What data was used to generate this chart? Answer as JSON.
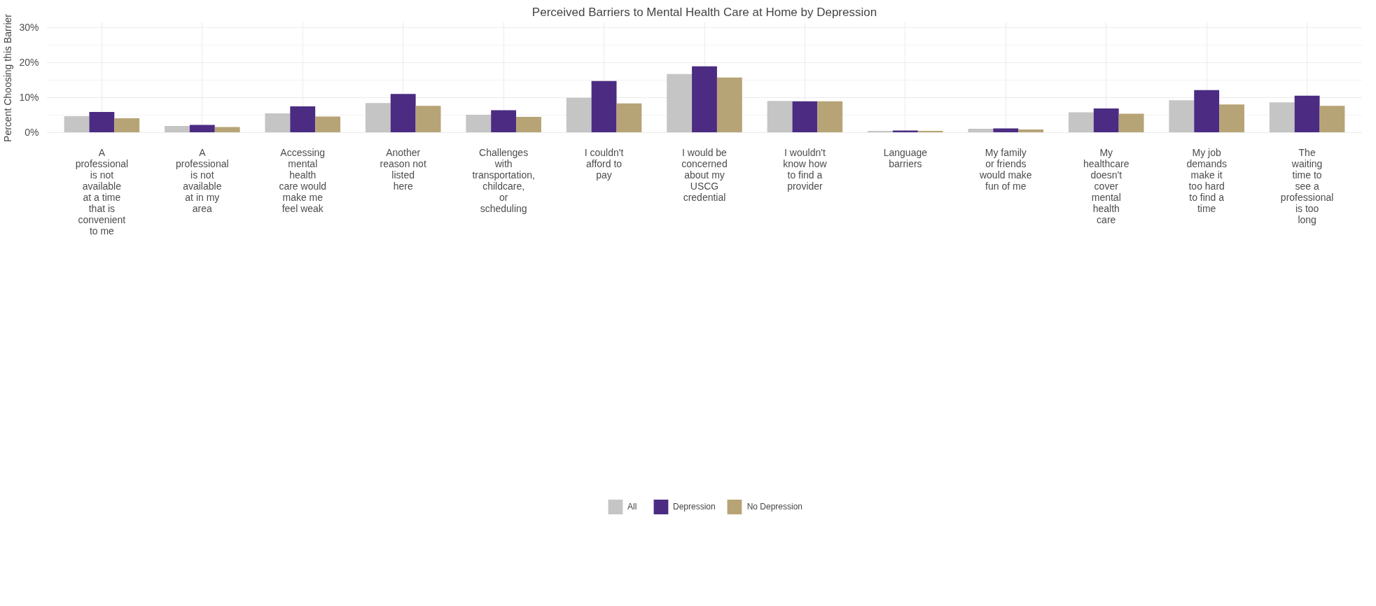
{
  "chart_data": {
    "type": "bar",
    "title": "Perceived Barriers to Mental Health Care at Home by Depression",
    "ylabel": "Percent Choosing this Barrier",
    "categories": [
      "A professional is not available at a time that is convenient to me",
      "A professional is not available at in my area",
      "Accessing mental health care would make me feel weak",
      "Another reason not listed here",
      "Challenges with transportation, childcare, or scheduling",
      "I couldn't afford to pay",
      "I would be concerned about my USCG credential",
      "I wouldn't know how to find a provider",
      "Language barriers",
      "My family or friends would make fun of me",
      "My healthcare doesn't cover mental health care",
      "My job demands make it too hard to find a time",
      "The waiting time to see a professional is too long"
    ],
    "series": [
      {
        "name": "All",
        "color": "#c5c5c5",
        "values": [
          4.6,
          1.8,
          5.4,
          8.4,
          5.0,
          9.9,
          16.7,
          9.0,
          0.4,
          1.0,
          5.7,
          9.2,
          8.6
        ]
      },
      {
        "name": "Depression",
        "color": "#4b2c82",
        "values": [
          5.8,
          2.1,
          7.4,
          11.0,
          6.3,
          14.7,
          18.9,
          8.9,
          0.5,
          1.1,
          6.8,
          12.1,
          10.5
        ]
      },
      {
        "name": "No Depression",
        "color": "#b7a476",
        "values": [
          4.0,
          1.5,
          4.5,
          7.6,
          4.4,
          8.3,
          15.7,
          8.9,
          0.4,
          0.8,
          5.3,
          8.0,
          7.6
        ]
      }
    ],
    "ylim": [
      -0.5,
      31.6
    ],
    "yticks": [
      {
        "value": 0,
        "label": "0%"
      },
      {
        "value": 10,
        "label": "10%"
      },
      {
        "value": 20,
        "label": "20%"
      },
      {
        "value": 30,
        "label": "30%"
      }
    ],
    "grid": true,
    "legend": "bottom"
  }
}
